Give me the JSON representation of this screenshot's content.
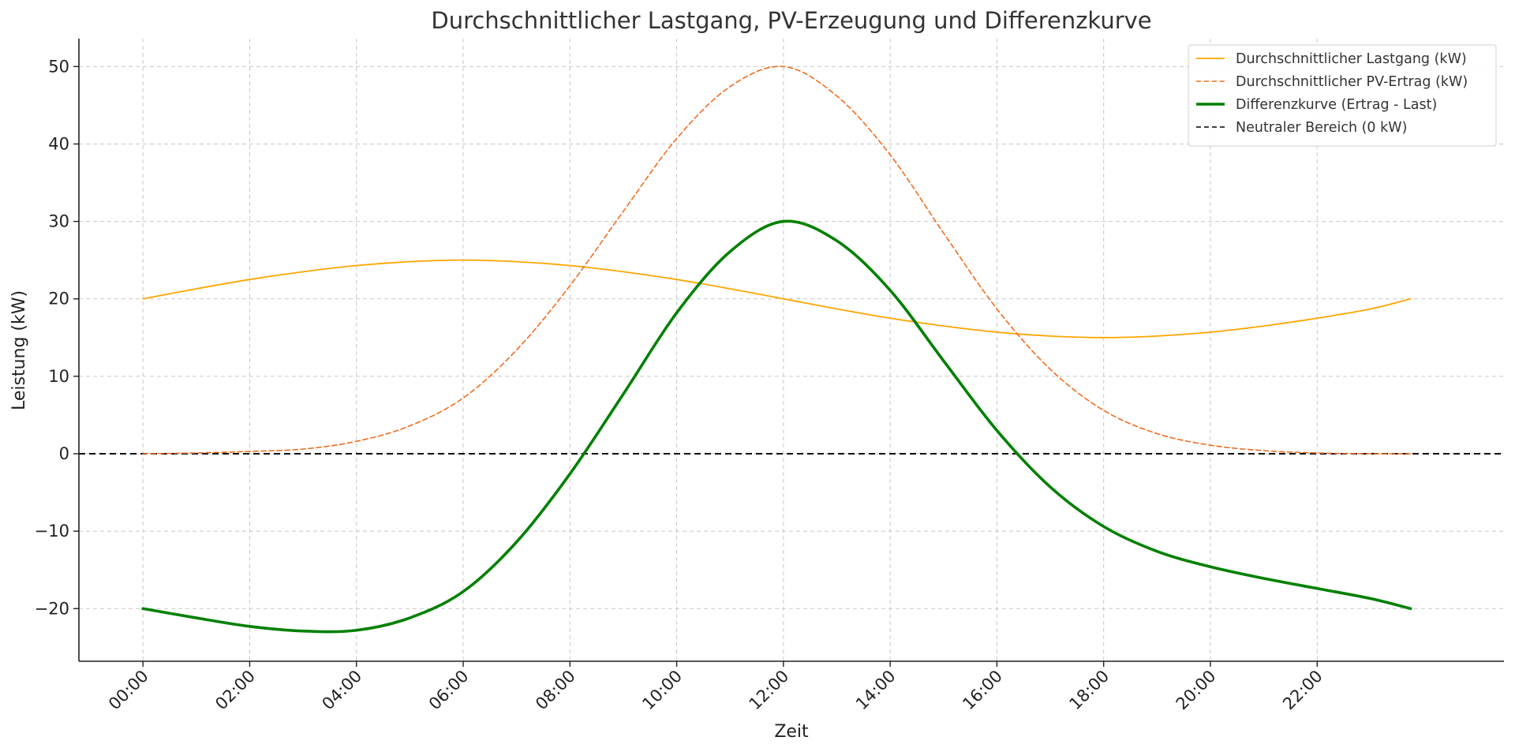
{
  "chart_data": {
    "type": "line",
    "title": "Durchschnittlicher Lastgang, PV-Erzeugung und Differenzkurve",
    "xlabel": "Zeit",
    "ylabel": "Leistung (kW)",
    "xlim": [
      -1.2,
      25.5
    ],
    "ylim": [
      -26.8,
      53.6
    ],
    "x_ticks": [
      "00:00",
      "02:00",
      "04:00",
      "06:00",
      "08:00",
      "10:00",
      "12:00",
      "14:00",
      "16:00",
      "18:00",
      "20:00",
      "22:00"
    ],
    "y_ticks": [
      50,
      40,
      30,
      20,
      10,
      0,
      -10,
      -20
    ],
    "y_tick_labels": [
      "50",
      "40",
      "30",
      "20",
      "10",
      "0",
      "−10",
      "−20"
    ],
    "grid": true,
    "legend_position": "top-right",
    "x": [
      0,
      1,
      2,
      3,
      4,
      5,
      6,
      7,
      8,
      9,
      10,
      11,
      12,
      13,
      14,
      15,
      16,
      17,
      18,
      19,
      20,
      21,
      22,
      23,
      23.75
    ],
    "series": [
      {
        "name": "Durchschnittlicher Lastgang (kW)",
        "color": "#FFA500",
        "style": "solid",
        "values": [
          20.0,
          21.3,
          22.5,
          23.5,
          24.3,
          24.8,
          25.0,
          24.8,
          24.3,
          23.5,
          22.5,
          21.3,
          20.0,
          18.7,
          17.5,
          16.5,
          15.7,
          15.2,
          15.0,
          15.2,
          15.7,
          16.5,
          17.5,
          18.7,
          20.0
        ]
      },
      {
        "name": "Durchschnittlicher PV-Ertrag (kW)",
        "color": "#F26B1D",
        "style": "dashed",
        "values": [
          0.0,
          0.1,
          0.3,
          0.6,
          1.6,
          3.6,
          7.2,
          13.4,
          21.7,
          31.3,
          40.7,
          47.4,
          50.0,
          46.2,
          38.6,
          28.5,
          18.7,
          10.9,
          5.6,
          2.6,
          1.1,
          0.4,
          0.1,
          0.0,
          0.0
        ]
      },
      {
        "name": "Differenzkurve (Ertrag - Last)",
        "color": "#008000",
        "style": "solid-thick",
        "values": [
          -20.0,
          -21.2,
          -22.3,
          -22.9,
          -22.8,
          -21.2,
          -17.8,
          -11.4,
          -2.6,
          7.7,
          18.2,
          26.1,
          30.0,
          27.5,
          21.1,
          12.0,
          3.0,
          -4.3,
          -9.4,
          -12.6,
          -14.6,
          -16.1,
          -17.4,
          -18.7,
          -20.0
        ]
      },
      {
        "name": "Neutraler Bereich (0 kW)",
        "color": "#000000",
        "style": "dashed",
        "constant": 0
      }
    ]
  }
}
